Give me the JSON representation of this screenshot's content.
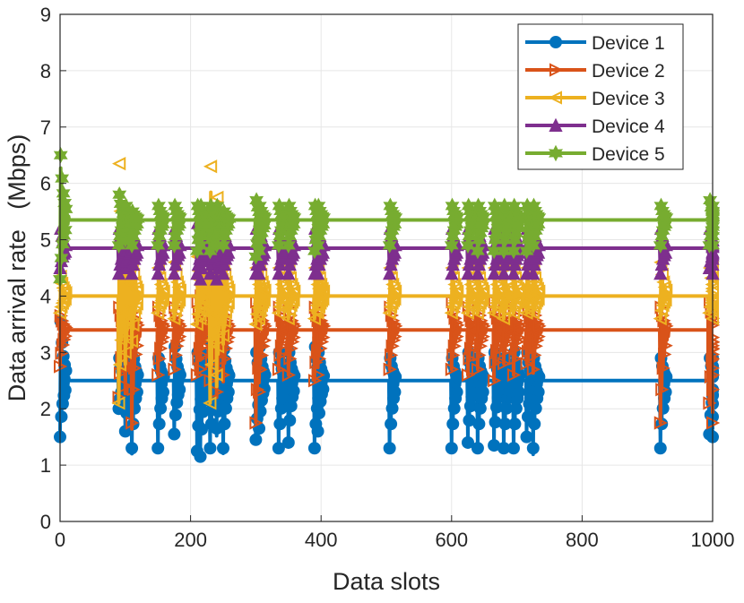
{
  "chart_data": {
    "type": "line",
    "title": "",
    "xlabel": "Data slots",
    "ylabel": "Data arrival rate   (Mbps)",
    "xlim": [
      0,
      1000
    ],
    "ylim": [
      0,
      9
    ],
    "xticks": [
      "0",
      "200",
      "400",
      "600",
      "800",
      "1000"
    ],
    "yticks": [
      "0",
      "1",
      "2",
      "3",
      "4",
      "5",
      "6",
      "7",
      "8",
      "9"
    ],
    "grid": true,
    "legend_position": "top-right",
    "event_slots": [
      0,
      90,
      100,
      110,
      150,
      175,
      210,
      215,
      230,
      240,
      250,
      300,
      305,
      335,
      350,
      390,
      395,
      505,
      600,
      625,
      640,
      665,
      680,
      695,
      715,
      725,
      920,
      995,
      1000
    ],
    "series": [
      {
        "name": "Device 1",
        "color": "#0072BD",
        "marker": "circle",
        "baseline": 2.5,
        "low_spikes": [
          1.5,
          2.0,
          1.6,
          1.3,
          1.3,
          1.55,
          1.25,
          1.15,
          1.3,
          1.65,
          1.3,
          1.45,
          1.65,
          1.3,
          1.4,
          1.3,
          1.6,
          1.3,
          1.3,
          1.4,
          1.3,
          1.35,
          1.3,
          1.3,
          1.5,
          1.3,
          1.3,
          1.55,
          1.5
        ],
        "high_spikes": [
          3.55,
          2.9,
          3.0,
          3.1,
          2.9,
          3.1,
          3.0,
          3.0,
          3.2,
          3.1,
          3.05,
          3.0,
          3.1,
          3.0,
          3.0,
          3.1,
          3.0,
          2.9,
          2.9,
          3.0,
          2.9,
          3.0,
          2.9,
          3.0,
          3.0,
          2.9,
          2.9,
          2.9,
          2.9
        ]
      },
      {
        "name": "Device 2",
        "color": "#D95319",
        "marker": "triangle-right",
        "baseline": 3.4,
        "low_spikes": [
          2.75,
          2.2,
          2.4,
          1.75,
          2.6,
          2.7,
          2.6,
          2.7,
          2.5,
          2.3,
          2.6,
          1.75,
          2.3,
          2.7,
          2.6,
          2.5,
          2.6,
          2.7,
          2.7,
          2.6,
          2.7,
          2.5,
          2.8,
          2.6,
          2.8,
          2.7,
          1.75,
          2.1,
          1.75
        ],
        "high_spikes": [
          3.65,
          3.8,
          3.75,
          3.9,
          3.8,
          3.8,
          3.9,
          4.0,
          3.9,
          4.0,
          3.8,
          3.9,
          3.8,
          3.8,
          3.8,
          3.8,
          3.8,
          3.8,
          3.9,
          3.8,
          3.8,
          3.9,
          3.8,
          3.8,
          3.9,
          3.8,
          3.8,
          3.9,
          2.6
        ]
      },
      {
        "name": "Device 3",
        "color": "#EDB120",
        "marker": "triangle-left",
        "baseline": 4.0,
        "low_spikes": [
          3.7,
          2.1,
          3.0,
          3.2,
          3.7,
          3.6,
          3.5,
          3.6,
          2.1,
          2.6,
          3.3,
          3.5,
          3.6,
          3.7,
          3.6,
          3.6,
          3.7,
          3.7,
          3.7,
          3.7,
          3.7,
          3.7,
          3.6,
          3.7,
          3.7,
          3.7,
          3.6,
          3.7,
          3.6
        ],
        "high_spikes": [
          4.35,
          6.35,
          5.3,
          4.6,
          4.5,
          4.6,
          4.7,
          4.8,
          6.3,
          5.75,
          4.6,
          4.5,
          4.6,
          4.5,
          4.5,
          4.5,
          4.5,
          4.5,
          4.5,
          4.5,
          4.5,
          4.5,
          4.6,
          4.5,
          4.5,
          4.5,
          4.6,
          4.5,
          4.5
        ]
      },
      {
        "name": "Device 4",
        "color": "#7E2F8E",
        "marker": "triangle-up",
        "baseline": 4.85,
        "low_spikes": [
          4.5,
          4.4,
          4.5,
          4.4,
          4.4,
          4.4,
          4.4,
          4.3,
          4.4,
          4.3,
          4.4,
          4.4,
          4.4,
          4.4,
          4.4,
          4.4,
          4.4,
          4.4,
          4.4,
          4.4,
          4.4,
          4.4,
          4.4,
          4.4,
          4.4,
          4.4,
          4.4,
          4.5,
          4.4
        ],
        "high_spikes": [
          5.2,
          5.2,
          5.3,
          5.2,
          5.2,
          5.2,
          5.3,
          5.3,
          5.3,
          5.2,
          5.2,
          5.2,
          5.2,
          5.2,
          5.2,
          5.2,
          5.2,
          5.2,
          5.2,
          5.2,
          5.2,
          5.2,
          5.2,
          5.2,
          5.2,
          5.2,
          5.2,
          5.2,
          5.0
        ]
      },
      {
        "name": "Device 5",
        "color": "#77AC30",
        "marker": "hexagram",
        "baseline": 5.35,
        "low_spikes": [
          4.3,
          4.9,
          5.0,
          4.9,
          4.9,
          4.9,
          4.8,
          4.9,
          4.8,
          4.9,
          4.9,
          4.7,
          4.8,
          4.9,
          4.9,
          4.8,
          4.9,
          4.9,
          4.9,
          4.9,
          4.8,
          4.8,
          4.8,
          4.8,
          4.8,
          4.9,
          4.9,
          4.9,
          4.9
        ],
        "high_spikes": [
          6.5,
          5.8,
          5.6,
          5.5,
          5.6,
          5.6,
          5.6,
          5.6,
          5.6,
          5.6,
          5.5,
          5.7,
          5.6,
          5.6,
          5.6,
          5.6,
          5.6,
          5.6,
          5.6,
          5.6,
          5.6,
          5.6,
          5.6,
          5.6,
          5.6,
          5.6,
          5.6,
          5.7,
          5.6
        ]
      }
    ]
  }
}
